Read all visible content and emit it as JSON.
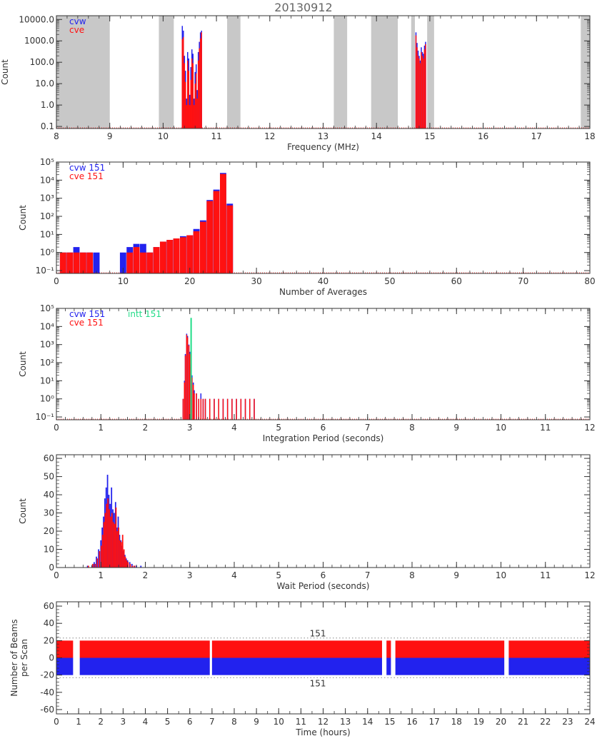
{
  "title": "20130912",
  "colors": {
    "cvw": "#2222ee",
    "cve": "#ff1111",
    "intt": "#22dd88",
    "shade": "#c8c8c8",
    "axis": "#333333"
  },
  "chart_data": [
    {
      "type": "bar",
      "scale": "log",
      "xlabel": "Frequency (MHz)",
      "ylabel": "Count",
      "xlim": [
        8,
        18
      ],
      "xticks": [
        8,
        9,
        10,
        11,
        12,
        13,
        14,
        15,
        16,
        17,
        18
      ],
      "yticks": [
        0.1,
        1,
        10,
        100,
        1000,
        10000
      ],
      "ytick_labels": [
        "0.1",
        "1.0",
        "10.0",
        "100.0",
        "1000.0",
        "10000.0"
      ],
      "ylim": [
        0.08,
        15000
      ],
      "legend": [
        {
          "label": "cvw",
          "color": "#2222ee"
        },
        {
          "label": "cve",
          "color": "#ff1111"
        }
      ],
      "shaded_bands": [
        [
          8.0,
          9.0
        ],
        [
          9.92,
          10.2
        ],
        [
          11.2,
          11.45
        ],
        [
          13.2,
          13.45
        ],
        [
          13.9,
          14.4
        ],
        [
          14.65,
          14.72
        ],
        [
          14.95,
          15.08
        ],
        [
          17.83,
          18.0
        ]
      ],
      "series": [
        {
          "name": "cvw",
          "x": [
            10.36,
            10.38,
            10.4,
            10.42,
            10.44,
            10.46,
            10.48,
            10.5,
            10.52,
            10.54,
            10.56,
            10.58,
            10.6,
            10.62,
            10.64,
            10.66,
            10.68,
            10.7,
            10.72,
            14.74,
            14.76,
            14.78,
            14.8,
            14.82,
            14.84,
            14.86,
            14.88,
            14.9,
            14.92
          ],
          "values": [
            5000,
            3000,
            200,
            40,
            2,
            300,
            150,
            3,
            60,
            400,
            250,
            2,
            35,
            80,
            5,
            300,
            900,
            2500,
            3000,
            2500,
            800,
            350,
            200,
            120,
            500,
            300,
            250,
            600,
            900
          ]
        },
        {
          "name": "cve",
          "x": [
            10.36,
            10.38,
            10.4,
            10.42,
            10.44,
            10.46,
            10.48,
            10.5,
            10.52,
            10.54,
            10.56,
            10.58,
            10.6,
            10.62,
            10.64,
            10.66,
            10.68,
            10.7,
            10.72,
            14.74,
            14.76,
            14.78,
            14.8,
            14.82,
            14.84,
            14.86,
            14.88,
            14.9,
            14.92
          ],
          "values": [
            1200,
            1500,
            90,
            12,
            1,
            120,
            40,
            1,
            15,
            150,
            90,
            1,
            10,
            30,
            2,
            120,
            450,
            1300,
            2500,
            1800,
            500,
            200,
            150,
            90,
            300,
            200,
            150,
            400,
            700
          ]
        }
      ]
    },
    {
      "type": "bar",
      "scale": "log",
      "xlabel": "Number of Averages",
      "ylabel": "Count",
      "xlim": [
        0,
        80
      ],
      "xticks": [
        0,
        10,
        20,
        30,
        40,
        50,
        60,
        70,
        80
      ],
      "yticks": [
        0.1,
        1,
        10,
        100,
        1000,
        10000,
        100000
      ],
      "ytick_labels": [
        "10⁻¹",
        "10⁰",
        "10¹",
        "10²",
        "10³",
        "10⁴",
        "10⁵"
      ],
      "ylim": [
        0.07,
        100000
      ],
      "legend": [
        {
          "label": "cvw 151",
          "color": "#2222ee"
        },
        {
          "label": "cve 151",
          "color": "#ff1111"
        }
      ],
      "series": [
        {
          "name": "cvw",
          "x": [
            1,
            2,
            3,
            4,
            5,
            6,
            7,
            8,
            9,
            10,
            11,
            12,
            13,
            14,
            15,
            16,
            17,
            18,
            19,
            20,
            21,
            22,
            23,
            24,
            25,
            26
          ],
          "values": [
            1,
            1,
            2,
            1,
            1,
            1,
            0,
            0,
            0,
            1,
            2,
            3,
            3,
            1,
            2,
            4,
            5,
            6,
            8,
            9,
            20,
            60,
            800,
            3000,
            25000,
            500
          ]
        },
        {
          "name": "cve",
          "x": [
            1,
            2,
            3,
            4,
            5,
            6,
            7,
            8,
            9,
            10,
            11,
            12,
            13,
            14,
            15,
            16,
            17,
            18,
            19,
            20,
            21,
            22,
            23,
            24,
            25,
            26
          ],
          "values": [
            1,
            1,
            1,
            1,
            1,
            0,
            0,
            0,
            0,
            0,
            1,
            2,
            1,
            1,
            2,
            4,
            5,
            6,
            7,
            9,
            15,
            50,
            700,
            2500,
            22000,
            400
          ]
        }
      ]
    },
    {
      "type": "bar",
      "scale": "log",
      "xlabel": "Integration Period (seconds)",
      "ylabel": "Count",
      "xlim": [
        0,
        12
      ],
      "xticks": [
        0,
        1,
        2,
        3,
        4,
        5,
        6,
        7,
        8,
        9,
        10,
        11,
        12
      ],
      "yticks": [
        0.1,
        1,
        10,
        100,
        1000,
        10000,
        100000
      ],
      "ytick_labels": [
        "10⁻¹",
        "10⁰",
        "10¹",
        "10²",
        "10³",
        "10⁴",
        "10⁵"
      ],
      "ylim": [
        0.07,
        100000
      ],
      "legend": [
        {
          "label": "cvw 151",
          "color": "#2222ee"
        },
        {
          "label": "cve 151",
          "color": "#ff1111"
        },
        {
          "label": "intt 151",
          "color": "#22dd88"
        }
      ],
      "series": [
        {
          "name": "cvw",
          "x": [
            2.85,
            2.88,
            2.9,
            2.93,
            2.95,
            2.98,
            3.0,
            3.03,
            3.05,
            3.08,
            3.1,
            3.15,
            3.2,
            3.25,
            3.3,
            3.35,
            3.45,
            3.55,
            3.65,
            3.75,
            3.85,
            3.95,
            4.05,
            4.15,
            4.25,
            4.35,
            4.45
          ],
          "values": [
            1,
            10,
            300,
            4000,
            3000,
            1000,
            400,
            80,
            20,
            8,
            3,
            2,
            1,
            2,
            1,
            1,
            1,
            1,
            1,
            1,
            1,
            1,
            1,
            1,
            1,
            1,
            1
          ]
        },
        {
          "name": "cve",
          "x": [
            2.85,
            2.88,
            2.9,
            2.93,
            2.95,
            2.98,
            3.0,
            3.03,
            3.05,
            3.08,
            3.1,
            3.15,
            3.2,
            3.25,
            3.3,
            3.35,
            3.45,
            3.55,
            3.65,
            3.75,
            3.85,
            3.95,
            4.05,
            4.15,
            4.25,
            4.35,
            4.45
          ],
          "values": [
            1,
            8,
            250,
            3500,
            2500,
            900,
            300,
            60,
            15,
            6,
            2,
            2,
            1,
            1,
            1,
            1,
            1,
            1,
            1,
            1,
            1,
            1,
            1,
            1,
            1,
            1,
            1
          ]
        },
        {
          "name": "intt",
          "x": [
            3.03
          ],
          "values": [
            30000
          ]
        }
      ]
    },
    {
      "type": "bar",
      "xlabel": "Wait Period (seconds)",
      "ylabel": "Count",
      "xlim": [
        0,
        12
      ],
      "xticks": [
        0,
        1,
        2,
        3,
        4,
        5,
        6,
        7,
        8,
        9,
        10,
        11,
        12
      ],
      "yticks": [
        0,
        10,
        20,
        30,
        40,
        50,
        60
      ],
      "ylim": [
        0,
        62
      ],
      "series": [
        {
          "name": "cvw",
          "x": [
            0.7,
            0.8,
            0.85,
            0.9,
            0.95,
            1.0,
            1.03,
            1.06,
            1.09,
            1.12,
            1.15,
            1.18,
            1.21,
            1.24,
            1.27,
            1.3,
            1.33,
            1.36,
            1.39,
            1.42,
            1.45,
            1.48,
            1.51,
            1.54,
            1.57,
            1.6,
            1.65,
            1.7,
            1.75,
            1.8,
            1.9
          ],
          "values": [
            1,
            1,
            3,
            6,
            10,
            15,
            22,
            28,
            38,
            44,
            51,
            40,
            35,
            44,
            32,
            30,
            36,
            22,
            28,
            18,
            15,
            12,
            9,
            7,
            5,
            4,
            3,
            2,
            1,
            1,
            1
          ]
        },
        {
          "name": "cve",
          "x": [
            0.72,
            0.82,
            0.87,
            0.92,
            0.97,
            1.01,
            1.04,
            1.07,
            1.1,
            1.13,
            1.16,
            1.19,
            1.22,
            1.25,
            1.28,
            1.31,
            1.34,
            1.37,
            1.4,
            1.43,
            1.46,
            1.49,
            1.52,
            1.55,
            1.58,
            1.61,
            1.66,
            1.71,
            1.76
          ],
          "values": [
            1,
            2,
            2,
            5,
            9,
            12,
            18,
            25,
            30,
            35,
            38,
            32,
            28,
            30,
            25,
            24,
            33,
            20,
            22,
            15,
            14,
            18,
            10,
            6,
            4,
            3,
            2,
            1,
            1
          ]
        }
      ]
    },
    {
      "type": "bar",
      "xlabel": "Time (hours)",
      "ylabel": "Number of Beams per Scan",
      "xlim": [
        0,
        24
      ],
      "xticks": [
        0,
        1,
        2,
        3,
        4,
        5,
        6,
        7,
        8,
        9,
        10,
        11,
        12,
        13,
        14,
        15,
        16,
        17,
        18,
        19,
        20,
        21,
        22,
        23,
        24
      ],
      "yticks": [
        -60,
        -40,
        -20,
        0,
        20,
        40,
        60
      ],
      "ylim": [
        -65,
        65
      ],
      "reference_lines": [
        {
          "y": 23,
          "label": "151"
        },
        {
          "y": -23,
          "label": "151"
        }
      ],
      "segments": [
        [
          0.0,
          0.75
        ],
        [
          1.05,
          6.9
        ],
        [
          7.0,
          14.65
        ],
        [
          14.85,
          15.05
        ],
        [
          15.25,
          20.15
        ],
        [
          20.35,
          24.0
        ]
      ],
      "series": [
        {
          "name": "cvw",
          "value": -20
        },
        {
          "name": "cve",
          "value": 20
        }
      ]
    }
  ]
}
